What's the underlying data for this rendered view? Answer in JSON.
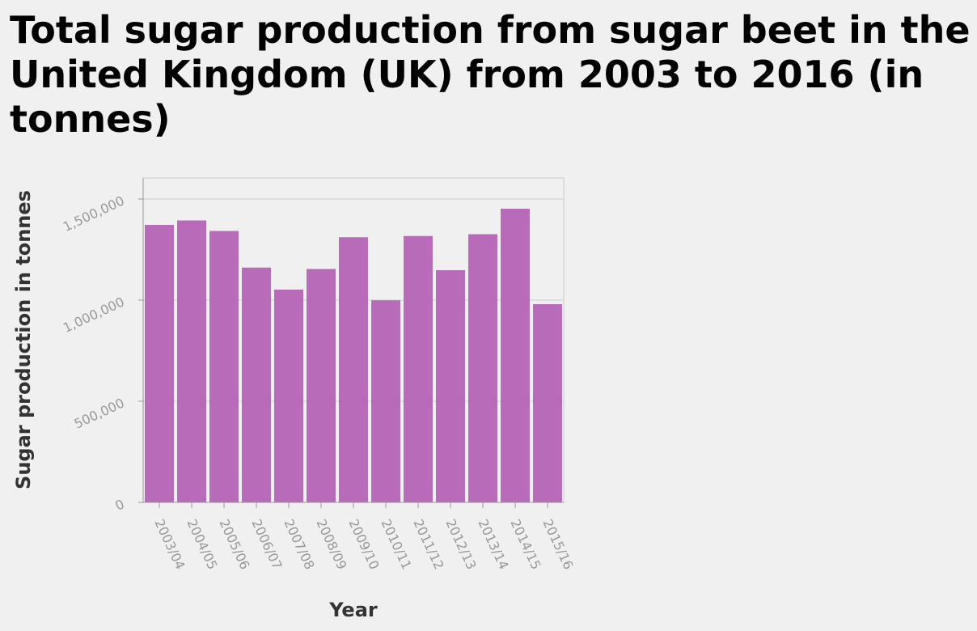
{
  "chart_data": {
    "type": "bar",
    "title": "Total sugar production from sugar beet in the United Kingdom (UK) from 2003 to 2016 (in tonnes)",
    "xlabel": "Year",
    "ylabel": "Sugar production in tonnes",
    "categories": [
      "2003/04",
      "2004/05",
      "2005/06",
      "2006/07",
      "2007/08",
      "2008/09",
      "2009/10",
      "2010/11",
      "2011/12",
      "2012/13",
      "2013/14",
      "2014/15",
      "2015/16"
    ],
    "values": [
      1372000,
      1394000,
      1342000,
      1161000,
      1052000,
      1154000,
      1311000,
      999000,
      1317000,
      1148000,
      1326000,
      1452000,
      980000
    ],
    "ylim": [
      0,
      1500000
    ],
    "yticks": [
      0,
      500000,
      1000000,
      1500000
    ],
    "ytick_labels": [
      "0",
      "500,000",
      "1,000,000",
      "1,500,000"
    ],
    "grid": true,
    "bar_color": "#b76bb8",
    "grid_color": "#cccccc",
    "background": "#f0f0f0"
  }
}
